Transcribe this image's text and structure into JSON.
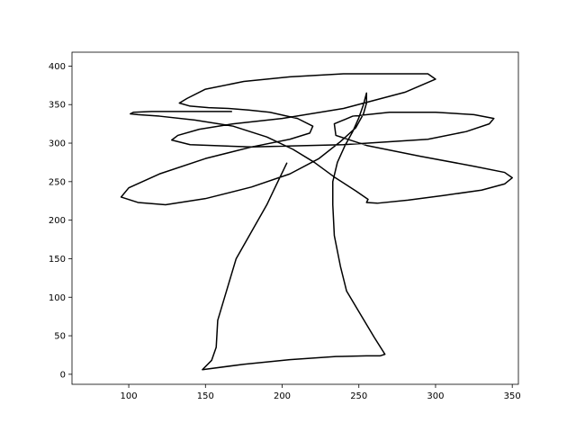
{
  "chart_data": {
    "type": "line",
    "title": "",
    "xlabel": "",
    "ylabel": "",
    "xlim": [
      63,
      354
    ],
    "ylim": [
      -13,
      418
    ],
    "x_ticks": [
      100,
      150,
      200,
      250,
      300,
      350
    ],
    "y_ticks": [
      0,
      50,
      100,
      150,
      200,
      250,
      300,
      350,
      400
    ],
    "x_tick_labels": [
      "100",
      "150",
      "200",
      "250",
      "300",
      "350"
    ],
    "y_tick_labels": [
      "0",
      "50",
      "100",
      "150",
      "200",
      "250",
      "300",
      "350",
      "400"
    ],
    "grid": false,
    "line_color": "#000000",
    "series": [
      {
        "x": [
          203,
          196,
          190,
          180,
          170,
          164,
          158,
          157,
          154,
          148,
          175,
          205,
          235,
          255,
          264,
          267,
          260,
          251,
          242,
          238,
          234,
          233,
          233,
          236,
          241,
          246,
          250,
          253,
          255,
          255,
          253,
          248,
          238,
          224,
          205,
          180,
          150,
          124,
          106,
          95,
          100,
          120,
          150,
          180,
          205,
          218,
          220,
          210,
          192,
          178,
          165,
          152,
          140,
          133,
          138,
          150,
          175,
          205,
          240,
          272,
          295,
          300,
          280,
          240,
          200,
          168,
          146,
          132,
          128,
          140,
          180,
          240,
          295,
          320,
          335,
          338,
          325,
          300,
          270,
          246,
          234,
          235,
          255,
          290,
          325,
          345,
          350,
          345,
          330,
          305,
          282,
          262,
          255,
          256,
          248,
          234,
          221,
          207,
          190,
          168,
          143,
          120,
          106,
          101,
          103,
          115,
          140,
          167
        ],
        "y": [
          274,
          245,
          220,
          185,
          150,
          110,
          70,
          35,
          18,
          6,
          13,
          19,
          23,
          24,
          24,
          26,
          48,
          78,
          108,
          140,
          180,
          220,
          250,
          275,
          297,
          315,
          333,
          350,
          365,
          352,
          338,
          320,
          302,
          280,
          260,
          243,
          228,
          220,
          223,
          230,
          242,
          260,
          280,
          295,
          305,
          313,
          322,
          332,
          340,
          343,
          345,
          346,
          348,
          352,
          358,
          370,
          380,
          386,
          390,
          390,
          390,
          383,
          366,
          345,
          332,
          325,
          318,
          310,
          304,
          298,
          295,
          298,
          305,
          315,
          325,
          332,
          337,
          340,
          340,
          335,
          325,
          310,
          297,
          283,
          270,
          262,
          255,
          247,
          239,
          232,
          226,
          222,
          223,
          227,
          238,
          256,
          275,
          292,
          308,
          322,
          330,
          335,
          337,
          338,
          340,
          341,
          341,
          341
        ]
      }
    ]
  }
}
